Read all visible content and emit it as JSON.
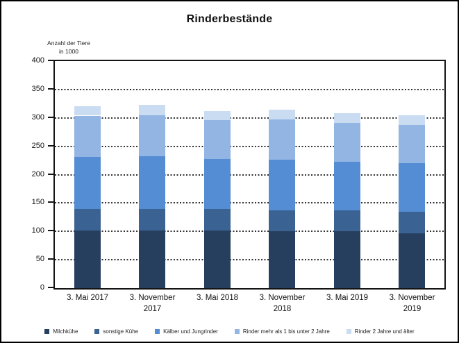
{
  "chart_data": {
    "type": "bar",
    "stacked": true,
    "title": "Rinderbestände",
    "y_axis_label_line1": "Anzahl der Tiere",
    "y_axis_label_line2": "in 1000",
    "categories": [
      "3. Mai 2017",
      "3. November 2017",
      "3. Mai 2018",
      "3. November 2018",
      "3. Mai 2019",
      "3. November 2019"
    ],
    "series": [
      {
        "name": "Milchkühe",
        "color": "#273f5e",
        "values": [
          102,
          102,
          102,
          100,
          100,
          97
        ]
      },
      {
        "name": "sonstige Kühe",
        "color": "#3a6292",
        "values": [
          38,
          38,
          37,
          37,
          37,
          37
        ]
      },
      {
        "name": "Kälber und Jungrinder",
        "color": "#548dd3",
        "values": [
          91,
          92,
          88,
          89,
          86,
          86
        ]
      },
      {
        "name": "Rinder mehr als 1 bis unter 2 Jahre",
        "color": "#92b5e3",
        "values": [
          73,
          73,
          69,
          71,
          68,
          67
        ]
      },
      {
        "name": "Rinder 2 Jahre und älter",
        "color": "#cadcf2",
        "values": [
          17,
          18,
          16,
          17,
          17,
          18
        ]
      }
    ],
    "totals": [
      321,
      323,
      312,
      314,
      308,
      305
    ],
    "ylim": [
      0,
      400
    ],
    "y_tick_step": 50,
    "y_tick_labels": [
      "0",
      "50",
      "100",
      "150",
      "200",
      "250",
      "300",
      "350",
      "400"
    ],
    "grid": "horizontal dotted",
    "legend_position": "bottom"
  }
}
